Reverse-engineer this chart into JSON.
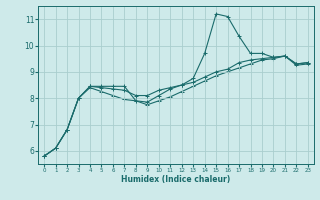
{
  "title": "",
  "xlabel": "Humidex (Indice chaleur)",
  "xlim": [
    -0.5,
    23.5
  ],
  "ylim": [
    5.5,
    11.5
  ],
  "yticks": [
    6,
    7,
    8,
    9,
    10,
    11
  ],
  "xticks": [
    0,
    1,
    2,
    3,
    4,
    5,
    6,
    7,
    8,
    9,
    10,
    11,
    12,
    13,
    14,
    15,
    16,
    17,
    18,
    19,
    20,
    21,
    22,
    23
  ],
  "background_color": "#ceeaea",
  "grid_color": "#aacece",
  "line_color": "#1a6b6b",
  "curve1_x": [
    0,
    1,
    2,
    3,
    4,
    5,
    6,
    7,
    8,
    9,
    10,
    11,
    12,
    13,
    14,
    15,
    16,
    17,
    18,
    19,
    20,
    21,
    22,
    23
  ],
  "curve1_y": [
    5.8,
    6.1,
    6.8,
    8.0,
    8.45,
    8.45,
    8.45,
    8.45,
    7.9,
    7.85,
    8.1,
    8.35,
    8.5,
    8.75,
    9.7,
    11.2,
    11.1,
    10.35,
    9.7,
    9.7,
    9.55,
    9.6,
    9.3,
    9.35
  ],
  "curve2_x": [
    0,
    1,
    2,
    3,
    4,
    5,
    6,
    7,
    8,
    9,
    10,
    11,
    12,
    13,
    14,
    15,
    16,
    17,
    18,
    19,
    20,
    21,
    22,
    23
  ],
  "curve2_y": [
    5.8,
    6.1,
    6.8,
    8.0,
    8.45,
    8.4,
    8.35,
    8.3,
    8.1,
    8.1,
    8.3,
    8.4,
    8.5,
    8.6,
    8.8,
    9.0,
    9.1,
    9.35,
    9.45,
    9.5,
    9.55,
    9.6,
    9.3,
    9.35
  ],
  "curve3_x": [
    0,
    1,
    2,
    3,
    4,
    5,
    6,
    7,
    8,
    9,
    10,
    11,
    12,
    13,
    14,
    15,
    16,
    17,
    18,
    19,
    20,
    21,
    22,
    23
  ],
  "curve3_y": [
    5.8,
    6.1,
    6.8,
    8.0,
    8.4,
    8.25,
    8.1,
    7.95,
    7.9,
    7.75,
    7.9,
    8.05,
    8.25,
    8.45,
    8.65,
    8.85,
    9.0,
    9.15,
    9.3,
    9.45,
    9.5,
    9.6,
    9.25,
    9.3
  ]
}
